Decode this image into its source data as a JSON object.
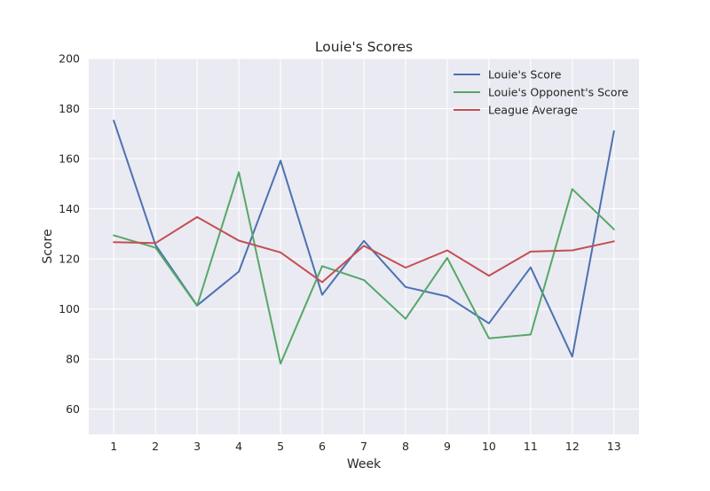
{
  "chart_data": {
    "type": "line",
    "title": "Louie's Scores",
    "xlabel": "Week",
    "ylabel": "Score",
    "x": [
      1,
      2,
      3,
      4,
      5,
      6,
      7,
      8,
      9,
      10,
      11,
      12,
      13
    ],
    "xlim": [
      0.4,
      13.6
    ],
    "ylim": [
      50,
      200
    ],
    "yticks": [
      60,
      80,
      100,
      120,
      140,
      160,
      180,
      200
    ],
    "grid": true,
    "legend_position": "top-right",
    "colors": {
      "background": "#eaeaf2",
      "grid": "#ffffff"
    },
    "series": [
      {
        "name": "Louie's Score",
        "color": "#4c72b0",
        "values": [
          175.2,
          125.6,
          101.4,
          114.9,
          159.2,
          105.7,
          127.2,
          108.8,
          105.0,
          94.3,
          116.6,
          81.0,
          171.0
        ]
      },
      {
        "name": "Louie's Opponent's Score",
        "color": "#55a868",
        "values": [
          129.4,
          124.5,
          101.3,
          154.6,
          78.2,
          117.1,
          111.6,
          96.1,
          120.4,
          88.3,
          89.8,
          147.9,
          131.8
        ]
      },
      {
        "name": "League Average",
        "color": "#c44e52",
        "values": [
          126.7,
          126.3,
          136.7,
          127.3,
          122.6,
          110.7,
          125.2,
          116.5,
          123.4,
          113.3,
          122.9,
          123.4,
          127.0
        ]
      }
    ]
  }
}
